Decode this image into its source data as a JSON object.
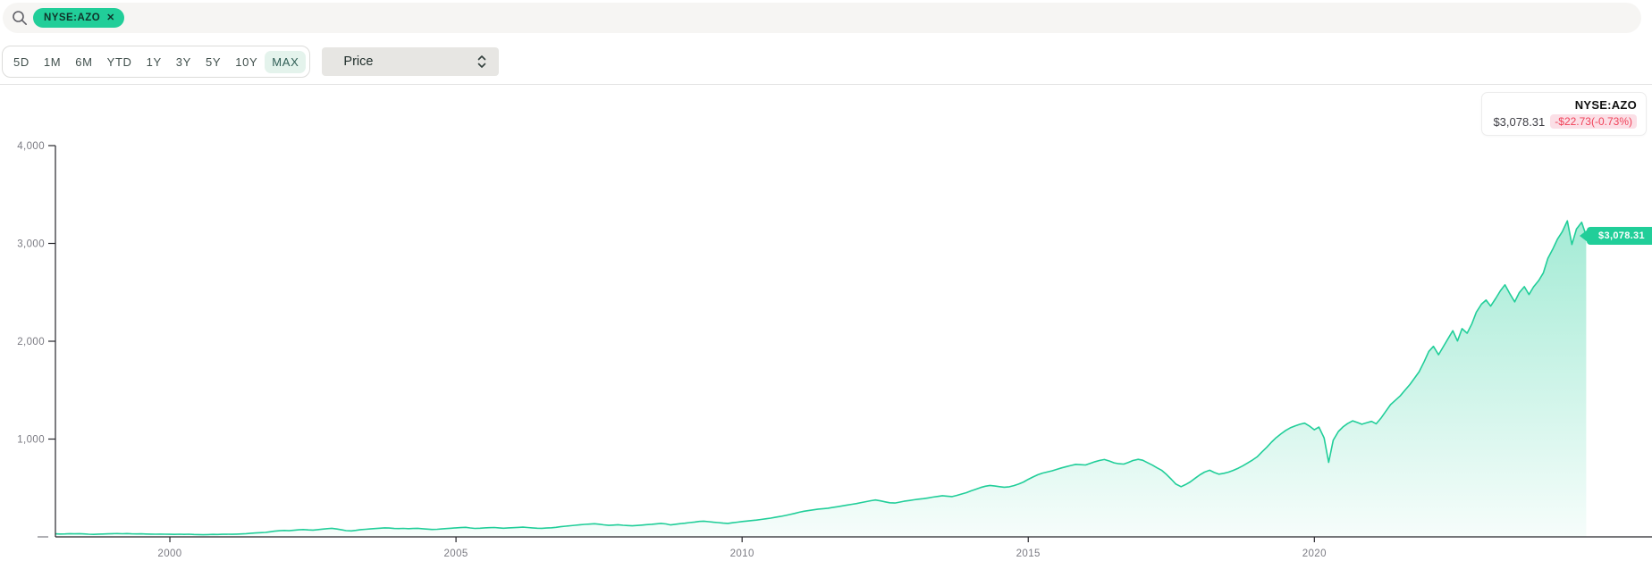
{
  "search": {
    "tag": {
      "label": "NYSE:AZO",
      "close_icon": "✕"
    }
  },
  "toolbar": {
    "ranges": [
      "5D",
      "1M",
      "6M",
      "YTD",
      "1Y",
      "3Y",
      "5Y",
      "10Y",
      "MAX"
    ],
    "selected_range": "MAX",
    "metric": {
      "value": "Price"
    }
  },
  "quote_card": {
    "symbol": "NYSE:AZO",
    "price": "$3,078.31",
    "change": "-$22.73(-0.73%)"
  },
  "price_flag": {
    "label": "$3,078.31"
  },
  "colors": {
    "accent_green": "#21ce99",
    "negative_red": "#f0435a",
    "negative_bg": "#fbdfe6",
    "axis": "#26262b",
    "tick_label": "#7b7b83"
  },
  "chart_data": {
    "type": "area",
    "title": "NYSE:AZO price history (MAX range)",
    "xlabel": "",
    "ylabel": "",
    "xlim": [
      1998,
      2025.9
    ],
    "ylim": [
      0,
      4000
    ],
    "grid": false,
    "line_color": "#21ce99",
    "fill_opacity_top": 0.5,
    "fill_opacity_bottom": 0.04,
    "x_ticks": [
      {
        "value": 2000,
        "label": "2000"
      },
      {
        "value": 2005,
        "label": "2005"
      },
      {
        "value": 2010,
        "label": "2010"
      },
      {
        "value": 2015,
        "label": "2015"
      },
      {
        "value": 2020,
        "label": "2020"
      }
    ],
    "y_ticks": [
      {
        "value": 0,
        "label": ""
      },
      {
        "value": 1000,
        "label": "1,000"
      },
      {
        "value": 2000,
        "label": "2,000"
      },
      {
        "value": 3000,
        "label": "3,000"
      },
      {
        "value": 4000,
        "label": "4,000"
      }
    ],
    "last_point": {
      "x": 2024.75,
      "y": 3078.31,
      "label": "$3,078.31"
    },
    "series": [
      [
        1998.0,
        31
      ],
      [
        1998.08,
        29.5
      ],
      [
        1998.17,
        30.5
      ],
      [
        1998.25,
        33
      ],
      [
        1998.33,
        31.5
      ],
      [
        1998.42,
        32.5
      ],
      [
        1998.5,
        30
      ],
      [
        1998.58,
        27
      ],
      [
        1998.67,
        26
      ],
      [
        1998.75,
        28.5
      ],
      [
        1998.83,
        29.5
      ],
      [
        1998.92,
        31
      ],
      [
        1999.0,
        33
      ],
      [
        1999.08,
        34
      ],
      [
        1999.17,
        32
      ],
      [
        1999.25,
        33.5
      ],
      [
        1999.33,
        31
      ],
      [
        1999.42,
        30
      ],
      [
        1999.5,
        31.5
      ],
      [
        1999.58,
        29
      ],
      [
        1999.67,
        28.5
      ],
      [
        1999.75,
        27.5
      ],
      [
        1999.83,
        28.5
      ],
      [
        1999.92,
        27
      ],
      [
        2000.0,
        26.5
      ],
      [
        2000.08,
        25.5
      ],
      [
        2000.17,
        27
      ],
      [
        2000.25,
        26
      ],
      [
        2000.33,
        27.5
      ],
      [
        2000.42,
        25
      ],
      [
        2000.5,
        23.5
      ],
      [
        2000.58,
        22
      ],
      [
        2000.67,
        24
      ],
      [
        2000.75,
        25.5
      ],
      [
        2000.83,
        24.5
      ],
      [
        2000.92,
        26.5
      ],
      [
        2001.0,
        27.5
      ],
      [
        2001.08,
        26.5
      ],
      [
        2001.17,
        28.5
      ],
      [
        2001.25,
        30
      ],
      [
        2001.33,
        33
      ],
      [
        2001.42,
        37
      ],
      [
        2001.5,
        40
      ],
      [
        2001.58,
        43
      ],
      [
        2001.67,
        46
      ],
      [
        2001.75,
        52
      ],
      [
        2001.83,
        58
      ],
      [
        2001.92,
        63
      ],
      [
        2002.0,
        66
      ],
      [
        2002.08,
        63
      ],
      [
        2002.17,
        68
      ],
      [
        2002.25,
        72
      ],
      [
        2002.33,
        75
      ],
      [
        2002.42,
        71
      ],
      [
        2002.5,
        69
      ],
      [
        2002.58,
        74
      ],
      [
        2002.67,
        79
      ],
      [
        2002.75,
        84
      ],
      [
        2002.83,
        88
      ],
      [
        2002.92,
        80
      ],
      [
        2003.0,
        72
      ],
      [
        2003.08,
        64
      ],
      [
        2003.17,
        61
      ],
      [
        2003.25,
        67
      ],
      [
        2003.33,
        74
      ],
      [
        2003.42,
        78
      ],
      [
        2003.5,
        81
      ],
      [
        2003.58,
        85
      ],
      [
        2003.67,
        89
      ],
      [
        2003.75,
        92
      ],
      [
        2003.83,
        90
      ],
      [
        2003.92,
        86
      ],
      [
        2004.0,
        85
      ],
      [
        2004.08,
        87
      ],
      [
        2004.17,
        84
      ],
      [
        2004.25,
        86
      ],
      [
        2004.33,
        88
      ],
      [
        2004.42,
        83
      ],
      [
        2004.5,
        79
      ],
      [
        2004.58,
        76
      ],
      [
        2004.67,
        78
      ],
      [
        2004.75,
        81
      ],
      [
        2004.83,
        85
      ],
      [
        2004.92,
        89
      ],
      [
        2005.0,
        92
      ],
      [
        2005.08,
        95
      ],
      [
        2005.17,
        98
      ],
      [
        2005.25,
        91
      ],
      [
        2005.33,
        87
      ],
      [
        2005.42,
        89
      ],
      [
        2005.5,
        92
      ],
      [
        2005.58,
        94
      ],
      [
        2005.67,
        96
      ],
      [
        2005.75,
        92
      ],
      [
        2005.83,
        89
      ],
      [
        2005.92,
        92
      ],
      [
        2006.0,
        94
      ],
      [
        2006.08,
        97
      ],
      [
        2006.17,
        100
      ],
      [
        2006.25,
        96
      ],
      [
        2006.33,
        92
      ],
      [
        2006.42,
        89
      ],
      [
        2006.5,
        88
      ],
      [
        2006.58,
        90
      ],
      [
        2006.67,
        93
      ],
      [
        2006.75,
        98
      ],
      [
        2006.83,
        104
      ],
      [
        2006.92,
        110
      ],
      [
        2007.0,
        114
      ],
      [
        2007.08,
        119
      ],
      [
        2007.17,
        124
      ],
      [
        2007.25,
        128
      ],
      [
        2007.33,
        131
      ],
      [
        2007.42,
        134
      ],
      [
        2007.5,
        130
      ],
      [
        2007.58,
        123
      ],
      [
        2007.67,
        118
      ],
      [
        2007.75,
        121
      ],
      [
        2007.83,
        124
      ],
      [
        2007.92,
        119
      ],
      [
        2008.0,
        116
      ],
      [
        2008.08,
        113
      ],
      [
        2008.17,
        117
      ],
      [
        2008.25,
        121
      ],
      [
        2008.33,
        125
      ],
      [
        2008.42,
        129
      ],
      [
        2008.5,
        133
      ],
      [
        2008.58,
        138
      ],
      [
        2008.67,
        132
      ],
      [
        2008.75,
        122
      ],
      [
        2008.83,
        129
      ],
      [
        2008.92,
        135
      ],
      [
        2009.0,
        140
      ],
      [
        2009.08,
        146
      ],
      [
        2009.17,
        152
      ],
      [
        2009.25,
        158
      ],
      [
        2009.33,
        161
      ],
      [
        2009.42,
        155
      ],
      [
        2009.5,
        150
      ],
      [
        2009.58,
        146
      ],
      [
        2009.67,
        141
      ],
      [
        2009.75,
        138
      ],
      [
        2009.83,
        144
      ],
      [
        2009.92,
        151
      ],
      [
        2010.0,
        157
      ],
      [
        2010.08,
        162
      ],
      [
        2010.17,
        167
      ],
      [
        2010.25,
        172
      ],
      [
        2010.33,
        178
      ],
      [
        2010.42,
        185
      ],
      [
        2010.5,
        192
      ],
      [
        2010.58,
        200
      ],
      [
        2010.67,
        209
      ],
      [
        2010.75,
        218
      ],
      [
        2010.83,
        228
      ],
      [
        2010.92,
        240
      ],
      [
        2011.0,
        252
      ],
      [
        2011.08,
        262
      ],
      [
        2011.17,
        270
      ],
      [
        2011.25,
        277
      ],
      [
        2011.33,
        284
      ],
      [
        2011.42,
        289
      ],
      [
        2011.5,
        293
      ],
      [
        2011.58,
        300
      ],
      [
        2011.67,
        309
      ],
      [
        2011.75,
        317
      ],
      [
        2011.83,
        325
      ],
      [
        2011.92,
        333
      ],
      [
        2012.0,
        341
      ],
      [
        2012.08,
        351
      ],
      [
        2012.17,
        361
      ],
      [
        2012.25,
        370
      ],
      [
        2012.33,
        377
      ],
      [
        2012.42,
        368
      ],
      [
        2012.5,
        358
      ],
      [
        2012.58,
        349
      ],
      [
        2012.67,
        346
      ],
      [
        2012.75,
        355
      ],
      [
        2012.83,
        364
      ],
      [
        2012.92,
        372
      ],
      [
        2013.0,
        379
      ],
      [
        2013.08,
        385
      ],
      [
        2013.17,
        391
      ],
      [
        2013.25,
        398
      ],
      [
        2013.33,
        406
      ],
      [
        2013.42,
        414
      ],
      [
        2013.5,
        421
      ],
      [
        2013.58,
        416
      ],
      [
        2013.67,
        412
      ],
      [
        2013.75,
        424
      ],
      [
        2013.83,
        437
      ],
      [
        2013.92,
        452
      ],
      [
        2014.0,
        470
      ],
      [
        2014.08,
        487
      ],
      [
        2014.17,
        505
      ],
      [
        2014.25,
        518
      ],
      [
        2014.33,
        526
      ],
      [
        2014.42,
        520
      ],
      [
        2014.5,
        513
      ],
      [
        2014.58,
        508
      ],
      [
        2014.67,
        512
      ],
      [
        2014.75,
        524
      ],
      [
        2014.83,
        540
      ],
      [
        2014.92,
        562
      ],
      [
        2015.0,
        588
      ],
      [
        2015.08,
        612
      ],
      [
        2015.17,
        636
      ],
      [
        2015.25,
        652
      ],
      [
        2015.33,
        663
      ],
      [
        2015.42,
        676
      ],
      [
        2015.5,
        690
      ],
      [
        2015.58,
        705
      ],
      [
        2015.67,
        719
      ],
      [
        2015.75,
        731
      ],
      [
        2015.83,
        742
      ],
      [
        2015.92,
        738
      ],
      [
        2016.0,
        735
      ],
      [
        2016.08,
        752
      ],
      [
        2016.17,
        769
      ],
      [
        2016.25,
        782
      ],
      [
        2016.33,
        791
      ],
      [
        2016.42,
        775
      ],
      [
        2016.5,
        757
      ],
      [
        2016.58,
        748
      ],
      [
        2016.67,
        744
      ],
      [
        2016.75,
        762
      ],
      [
        2016.83,
        781
      ],
      [
        2016.92,
        793
      ],
      [
        2017.0,
        784
      ],
      [
        2017.08,
        760
      ],
      [
        2017.17,
        733
      ],
      [
        2017.25,
        706
      ],
      [
        2017.33,
        681
      ],
      [
        2017.42,
        636
      ],
      [
        2017.5,
        589
      ],
      [
        2017.58,
        540
      ],
      [
        2017.67,
        513
      ],
      [
        2017.75,
        535
      ],
      [
        2017.83,
        562
      ],
      [
        2017.92,
        601
      ],
      [
        2018.0,
        635
      ],
      [
        2018.08,
        662
      ],
      [
        2018.17,
        681
      ],
      [
        2018.25,
        658
      ],
      [
        2018.33,
        641
      ],
      [
        2018.42,
        650
      ],
      [
        2018.5,
        662
      ],
      [
        2018.58,
        679
      ],
      [
        2018.67,
        702
      ],
      [
        2018.75,
        727
      ],
      [
        2018.83,
        754
      ],
      [
        2018.92,
        786
      ],
      [
        2019.0,
        818
      ],
      [
        2019.08,
        866
      ],
      [
        2019.17,
        917
      ],
      [
        2019.25,
        968
      ],
      [
        2019.33,
        1013
      ],
      [
        2019.42,
        1055
      ],
      [
        2019.5,
        1089
      ],
      [
        2019.58,
        1115
      ],
      [
        2019.67,
        1136
      ],
      [
        2019.75,
        1152
      ],
      [
        2019.83,
        1163
      ],
      [
        2019.92,
        1131
      ],
      [
        2020.0,
        1095
      ],
      [
        2020.08,
        1122
      ],
      [
        2020.17,
        1012
      ],
      [
        2020.25,
        762
      ],
      [
        2020.33,
        988
      ],
      [
        2020.42,
        1078
      ],
      [
        2020.5,
        1124
      ],
      [
        2020.58,
        1158
      ],
      [
        2020.67,
        1186
      ],
      [
        2020.75,
        1170
      ],
      [
        2020.83,
        1152
      ],
      [
        2020.92,
        1168
      ],
      [
        2021.0,
        1181
      ],
      [
        2021.08,
        1156
      ],
      [
        2021.17,
        1218
      ],
      [
        2021.25,
        1285
      ],
      [
        2021.33,
        1352
      ],
      [
        2021.42,
        1399
      ],
      [
        2021.5,
        1441
      ],
      [
        2021.58,
        1498
      ],
      [
        2021.67,
        1558
      ],
      [
        2021.75,
        1622
      ],
      [
        2021.83,
        1689
      ],
      [
        2021.92,
        1793
      ],
      [
        2022.0,
        1896
      ],
      [
        2022.08,
        1948
      ],
      [
        2022.17,
        1862
      ],
      [
        2022.25,
        1941
      ],
      [
        2022.33,
        2021
      ],
      [
        2022.42,
        2108
      ],
      [
        2022.5,
        2003
      ],
      [
        2022.58,
        2129
      ],
      [
        2022.67,
        2082
      ],
      [
        2022.75,
        2176
      ],
      [
        2022.83,
        2298
      ],
      [
        2022.92,
        2379
      ],
      [
        2023.0,
        2421
      ],
      [
        2023.08,
        2359
      ],
      [
        2023.17,
        2438
      ],
      [
        2023.25,
        2516
      ],
      [
        2023.33,
        2577
      ],
      [
        2023.42,
        2482
      ],
      [
        2023.5,
        2403
      ],
      [
        2023.58,
        2497
      ],
      [
        2023.67,
        2558
      ],
      [
        2023.75,
        2478
      ],
      [
        2023.83,
        2556
      ],
      [
        2023.92,
        2621
      ],
      [
        2024.0,
        2698
      ],
      [
        2024.08,
        2847
      ],
      [
        2024.17,
        2948
      ],
      [
        2024.25,
        3047
      ],
      [
        2024.33,
        3118
      ],
      [
        2024.42,
        3231
      ],
      [
        2024.5,
        2989
      ],
      [
        2024.58,
        3147
      ],
      [
        2024.67,
        3216
      ],
      [
        2024.75,
        3078.31
      ]
    ]
  }
}
